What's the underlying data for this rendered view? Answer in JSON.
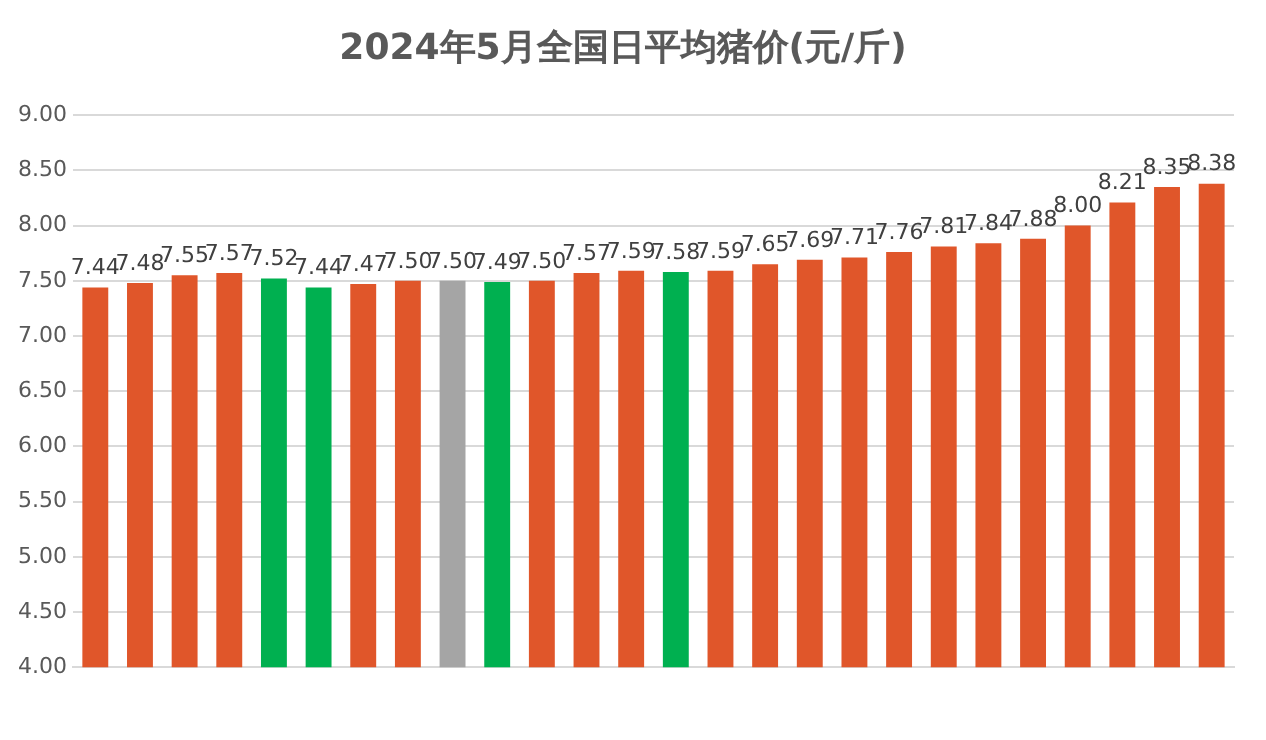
{
  "chart_data": {
    "type": "bar",
    "title": "2024年5月全国日平均猪价(元/斤)",
    "categories": [
      null,
      null,
      null,
      null,
      null,
      null,
      null,
      null,
      null,
      null,
      null,
      null,
      null,
      null,
      null,
      null,
      null,
      null,
      null,
      null,
      null,
      null,
      null,
      null,
      null,
      null
    ],
    "values": [
      7.44,
      7.48,
      7.55,
      7.57,
      7.52,
      7.44,
      7.47,
      7.5,
      7.5,
      7.49,
      7.5,
      7.57,
      7.59,
      7.58,
      7.59,
      7.65,
      7.69,
      7.71,
      7.76,
      7.81,
      7.84,
      7.88,
      8.0,
      8.21,
      8.35,
      8.38
    ],
    "value_labels": [
      "7.44",
      "7.48",
      "7.55",
      "7.57",
      "7.52",
      "7.44",
      "7.47",
      "7.50",
      "7.50",
      "7.49",
      "7.50",
      "7.57",
      "7.59",
      "7.58",
      "7.59",
      "7.65",
      "7.69",
      "7.71",
      "7.76",
      "7.81",
      "7.84",
      "7.88",
      "8.00",
      "8.21",
      "8.35",
      "8.38"
    ],
    "colors": [
      "#e0562a",
      "#e0562a",
      "#e0562a",
      "#e0562a",
      "#00b050",
      "#00b050",
      "#e0562a",
      "#e0562a",
      "#a5a5a5",
      "#00b050",
      "#e0562a",
      "#e0562a",
      "#e0562a",
      "#00b050",
      "#e0562a",
      "#e0562a",
      "#e0562a",
      "#e0562a",
      "#e0562a",
      "#e0562a",
      "#e0562a",
      "#e0562a",
      "#e0562a",
      "#e0562a",
      "#e0562a",
      "#e0562a"
    ],
    "ylim": [
      4,
      9
    ],
    "yticks": [
      {
        "value": 4,
        "label": "4.00"
      },
      {
        "value": 4.5,
        "label": "4.50"
      },
      {
        "value": 5,
        "label": "5.00"
      },
      {
        "value": 5.5,
        "label": "5.50"
      },
      {
        "value": 6,
        "label": "6.00"
      },
      {
        "value": 6.5,
        "label": "6.50"
      },
      {
        "value": 7,
        "label": "7.00"
      },
      {
        "value": 7.5,
        "label": "7.50"
      },
      {
        "value": 8,
        "label": "8.00"
      },
      {
        "value": 8.5,
        "label": "8.50"
      },
      {
        "value": 9,
        "label": "9.00"
      }
    ],
    "grid": "y",
    "legend": false
  }
}
